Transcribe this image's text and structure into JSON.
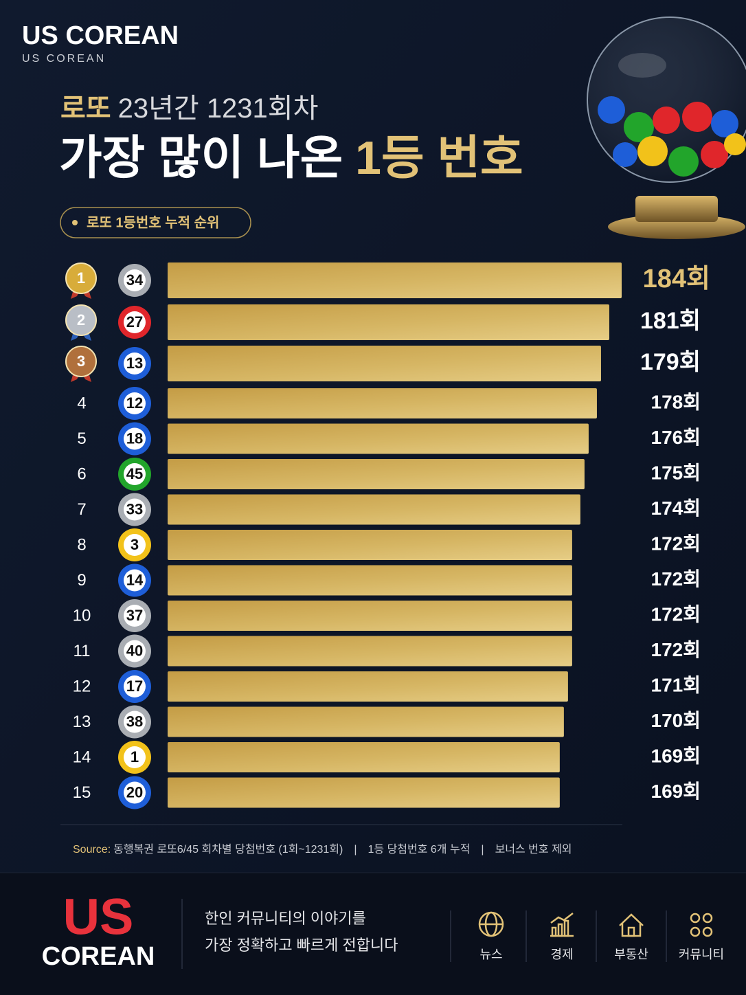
{
  "header": {
    "brand": "US COREAN",
    "brand_sub": "US COREAN"
  },
  "chart_data": {
    "type": "bar",
    "title": {
      "line1": [
        "로또",
        "23년간 1231회차"
      ],
      "line2": [
        "가장 많이 나온",
        "1등 번호"
      ]
    },
    "badge": "로또 1등번호 누적 순위",
    "ranks": [
      1,
      2,
      3,
      4,
      5,
      6,
      7,
      8,
      9,
      10,
      11,
      12,
      13,
      14,
      15
    ],
    "categories": [
      "34",
      "27",
      "13",
      "12",
      "18",
      "45",
      "33",
      "3",
      "14",
      "37",
      "40",
      "17",
      "38",
      "1",
      "20"
    ],
    "ball_colors": [
      "#a9adb3",
      "#e0262b",
      "#1e5ed8",
      "#1e5ed8",
      "#1e5ed8",
      "#22a52b",
      "#a9adb3",
      "#f2c21a",
      "#1e5ed8",
      "#a9adb3",
      "#a9adb3",
      "#1e5ed8",
      "#a9adb3",
      "#f2c21a",
      "#1e5ed8"
    ],
    "values": [
      184,
      181,
      179,
      178,
      176,
      175,
      174,
      172,
      172,
      172,
      172,
      171,
      170,
      169,
      169
    ],
    "value_labels": [
      "184회",
      "181회",
      "179회",
      "178회",
      "176회",
      "175회",
      "174회",
      "172회",
      "172회",
      "172회",
      "172회",
      "171회",
      "170회",
      "169회",
      "169회"
    ],
    "xlim": [
      74,
      184
    ],
    "source": {
      "prefix": "Source:",
      "parts": [
        "동행복권 로또6/45 회차별 당첨번호 (1회~1231회)",
        "1등 당첨번호 6개 누적",
        "보너스 번호 제외"
      ]
    }
  },
  "footer": {
    "logo_top": "US",
    "logo_bottom": "COREAN",
    "tagline": [
      "한인 커뮤니티의 이야기를",
      "가장 정확하고 빠르게 전합니다"
    ],
    "nav": [
      "뉴스",
      "경제",
      "부동산",
      "커뮤니티"
    ]
  }
}
